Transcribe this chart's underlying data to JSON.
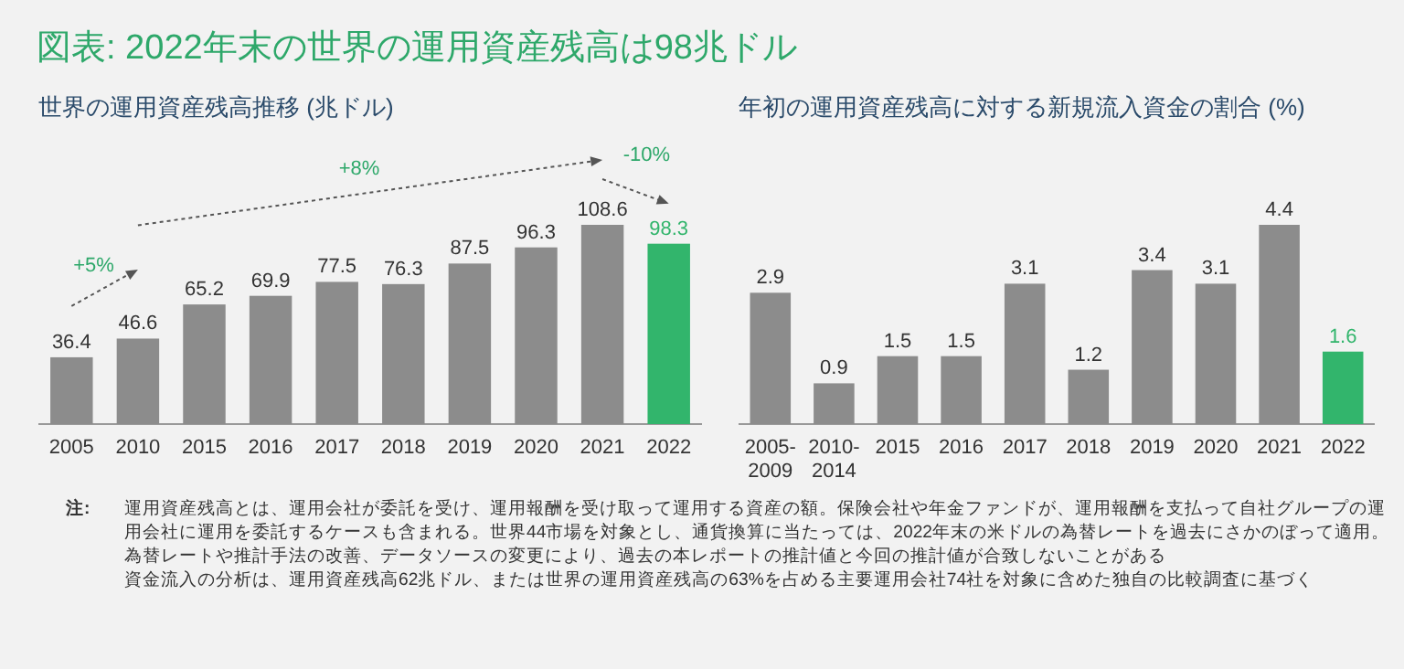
{
  "chart_data": [
    {
      "type": "bar",
      "title": "図表: 2022年末の世界の運用資産残高は98兆ドル",
      "subtitle": "世界の運用資産残高推移 (兆ドル)",
      "categories": [
        "2005",
        "2010",
        "2015",
        "2016",
        "2017",
        "2018",
        "2019",
        "2020",
        "2021",
        "2022"
      ],
      "values": [
        36.4,
        46.6,
        65.2,
        69.9,
        77.5,
        76.3,
        87.5,
        96.3,
        108.6,
        98.3
      ],
      "colors": [
        "#8c8c8c",
        "#8c8c8c",
        "#8c8c8c",
        "#8c8c8c",
        "#8c8c8c",
        "#8c8c8c",
        "#8c8c8c",
        "#8c8c8c",
        "#8c8c8c",
        "#32b56c"
      ],
      "data_labels": true,
      "annotations": [
        "+5%",
        "+8%",
        "-10%",
        "注:",
        "運用資産残高とは、運用会社が委託を受け、運用報酬を受け取って運用する資産の額。保険会社や年金ファンドが、運用報酬を支払って自社グループの運用会社に運用を委託するケースも含まれる。世界44市場を対象とし、通貨換算に当たっては、2022年末の米ドルの為替レートを過去にさかのぼって適用。為替レートや推計手法の改善、データソースの変更により、過去の本レポートの推計値と今回の推計値が合致しないことがある",
        "資金流入の分析は、運用資産残高62兆ドル、または世界の運用資産残高の63%を占める主要運用会社74社を対象に含めた独自の比較調査に基づく"
      ]
    },
    {
      "type": "bar",
      "title": "年初の運用資産残高に対する新規流入資金の割合 (%)",
      "categories": [
        "2005-2009",
        "2010-2014",
        "2015",
        "2016",
        "2017",
        "2018",
        "2019",
        "2020",
        "2021",
        "2022"
      ],
      "values": [
        2.9,
        0.9,
        1.5,
        1.5,
        3.1,
        1.2,
        3.4,
        3.1,
        4.4,
        1.6
      ],
      "colors": [
        "#8c8c8c",
        "#8c8c8c",
        "#8c8c8c",
        "#8c8c8c",
        "#8c8c8c",
        "#8c8c8c",
        "#8c8c8c",
        "#8c8c8c",
        "#8c8c8c",
        "#32b56c"
      ],
      "data_labels": true
    }
  ]
}
